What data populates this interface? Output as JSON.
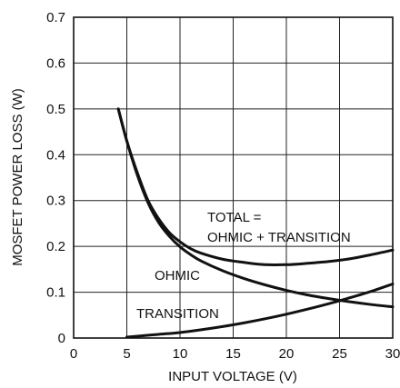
{
  "chart_data": {
    "type": "line",
    "title": "",
    "xlabel": "INPUT VOLTAGE (V)",
    "ylabel": "MOSFET POWER LOSS (W)",
    "xlim": [
      0,
      30
    ],
    "ylim": [
      0,
      0.7
    ],
    "x_ticks": [
      0,
      5,
      10,
      15,
      20,
      25,
      30
    ],
    "x_tick_labels": [
      "0",
      "5",
      "10",
      "15",
      "20",
      "25",
      "30"
    ],
    "y_ticks": [
      0,
      0.1,
      0.2,
      0.3,
      0.4,
      0.5,
      0.6,
      0.7
    ],
    "y_tick_labels": [
      "0",
      "0.1",
      "0.2",
      "0.3",
      "0.4",
      "0.5",
      "0.6",
      "0.7"
    ],
    "grid": true,
    "series": [
      {
        "name": "TOTAL = OHMIC + TRANSITION",
        "x": [
          4.2,
          5,
          6,
          7,
          8,
          9,
          10,
          11,
          12,
          14,
          16,
          18,
          20,
          22,
          24,
          26,
          28,
          30
        ],
        "y": [
          0.5,
          0.43,
          0.36,
          0.3,
          0.26,
          0.23,
          0.21,
          0.195,
          0.185,
          0.172,
          0.165,
          0.16,
          0.16,
          0.163,
          0.167,
          0.173,
          0.182,
          0.192
        ]
      },
      {
        "name": "OHMIC",
        "x": [
          4.2,
          5,
          6,
          7,
          8,
          9,
          10,
          11,
          12,
          14,
          16,
          18,
          20,
          22,
          24,
          26,
          28,
          30
        ],
        "y": [
          0.5,
          0.43,
          0.355,
          0.295,
          0.252,
          0.222,
          0.199,
          0.182,
          0.168,
          0.147,
          0.13,
          0.116,
          0.104,
          0.094,
          0.086,
          0.079,
          0.073,
          0.068
        ]
      },
      {
        "name": "TRANSITION",
        "x": [
          5,
          6,
          8,
          10,
          12,
          14,
          16,
          18,
          20,
          22,
          24,
          26,
          28,
          30
        ],
        "y": [
          0.002,
          0.004,
          0.008,
          0.012,
          0.018,
          0.025,
          0.033,
          0.042,
          0.052,
          0.063,
          0.075,
          0.088,
          0.102,
          0.118
        ]
      }
    ],
    "annotations": [
      {
        "lines": [
          "TOTAL =",
          "OHMIC + TRANSITION"
        ],
        "series": "TOTAL"
      },
      {
        "lines": [
          "OHMIC"
        ],
        "series": "OHMIC"
      },
      {
        "lines": [
          "TRANSITION"
        ],
        "series": "TRANSITION"
      }
    ]
  }
}
